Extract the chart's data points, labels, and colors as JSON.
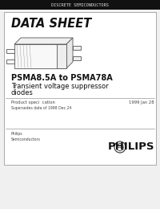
{
  "bg_color": "#f0f0f0",
  "card_color": "#ffffff",
  "header_bar_color": "#111111",
  "header_text": "DISCRETE SEMICONDUCTORS",
  "header_text_color": "#dddddd",
  "header_text_size": 3.8,
  "title_text": "DATA SHEET",
  "title_size": 10.5,
  "product_title": "PSMA8.5A to PSMA78A",
  "product_subtitle1": "Transient voltage suppressor",
  "product_subtitle2": "diodes",
  "product_title_size": 7.0,
  "product_subtitle_size": 6.0,
  "spec_label": "Product speci  cation",
  "spec_date": "1999 Jan 28",
  "supersedes": "Supersedes data of 1998 Dec 24",
  "philips_label": "Philips\nSemiconductors",
  "philips_brand": "PHILIPS",
  "small_text_size": 3.8,
  "philips_brand_size": 9.5,
  "line_color": "#999999",
  "text_color": "#111111",
  "small_text_color": "#444444"
}
